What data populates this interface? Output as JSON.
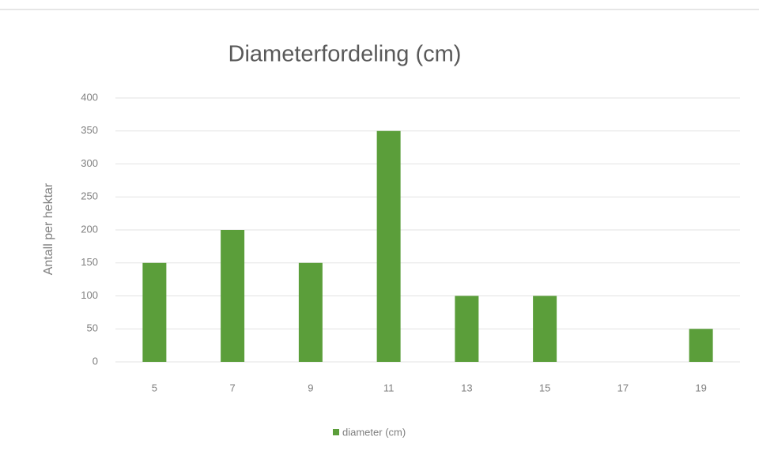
{
  "chart_data": {
    "type": "bar",
    "title": "Diameterfordeling (cm)",
    "y_label": "Antall per hektar",
    "categories": [
      "5",
      "7",
      "9",
      "11",
      "13",
      "15",
      "17",
      "19"
    ],
    "series": [
      {
        "name": "diameter (cm)",
        "color": "#5b9e3a",
        "values": [
          150,
          200,
          150,
          350,
          100,
          100,
          0,
          50
        ]
      }
    ],
    "ylim": [
      0,
      400
    ],
    "yticks": [
      0,
      50,
      100,
      150,
      200,
      250,
      300,
      350,
      400
    ],
    "grid": true,
    "legend": "bottom"
  }
}
